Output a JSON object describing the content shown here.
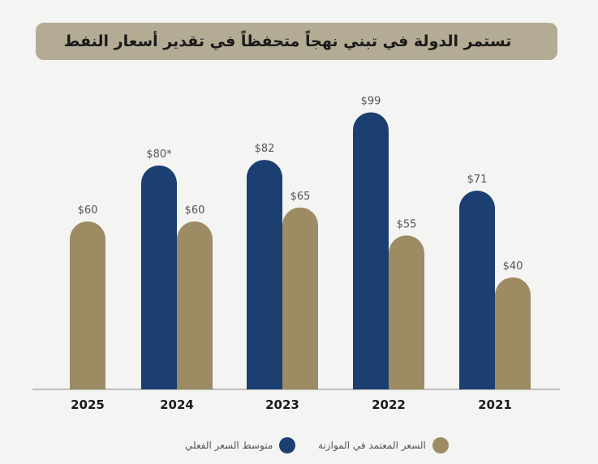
{
  "title": "تستمر الدولة في تبني نهجاً متحفظاً في تقدير أسعار النفط",
  "colors": {
    "actual": "#1b3f70",
    "budget": "#9d8b64",
    "axis": "#888888",
    "background": "#f4f4f3"
  },
  "chart_data": {
    "type": "bar",
    "title": "تستمر الدولة في تبني نهجاً متحفظاً في تقدير أسعار النفط",
    "categories": [
      "2025",
      "2024",
      "2023",
      "2022",
      "2021"
    ],
    "series": [
      {
        "name": "متوسط السعر الفعلي",
        "color": "#1b3f70",
        "values": [
          null,
          80,
          82,
          99,
          71
        ],
        "labels": [
          "",
          "$80*",
          "$82",
          "$99",
          "$71"
        ]
      },
      {
        "name": "السعر المعتمد في الموازنة",
        "color": "#9d8b64",
        "values": [
          60,
          60,
          65,
          55,
          40
        ],
        "labels": [
          "$60",
          "$60",
          "$65",
          "$55",
          "$40"
        ]
      }
    ],
    "ylim": [
      0,
      100
    ],
    "grid": false,
    "legend": "bottom"
  }
}
